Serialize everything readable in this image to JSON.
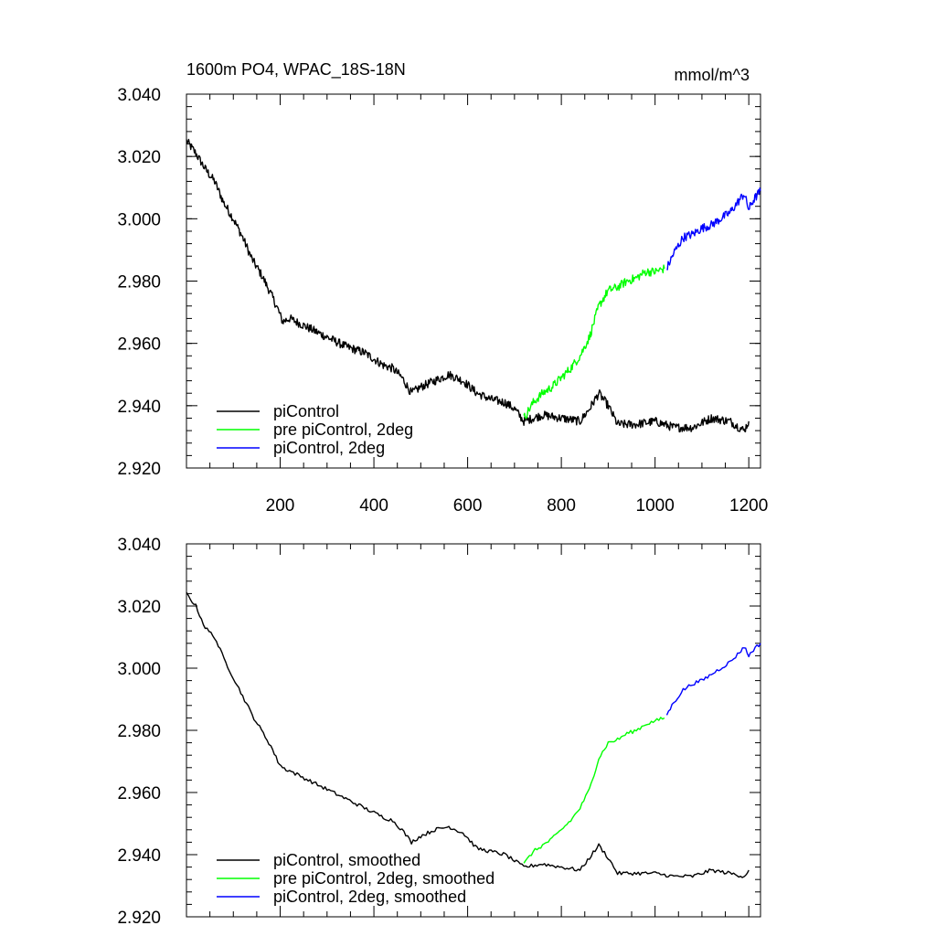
{
  "header": {
    "left_title": "1600m PO4, WPAC_18S-18N",
    "right_title": "mmol/m^3"
  },
  "colors": {
    "piControl": "#000000",
    "pre_piControl_2deg": "#00ff00",
    "piControl_2deg": "#0000ff"
  },
  "chart_data": [
    {
      "type": "line",
      "title": "1600m PO4, WPAC_18S-18N",
      "units": "mmol/m^3",
      "xlim": [
        0,
        1225
      ],
      "ylim": [
        2.92,
        3.04
      ],
      "y_ticks": [
        "3.040",
        "3.020",
        "3.000",
        "2.980",
        "2.960",
        "2.940",
        "2.920"
      ],
      "x_ticks": [
        "200",
        "400",
        "600",
        "800",
        "1000",
        "1200"
      ],
      "legend": [
        "piControl",
        "pre piControl, 2deg",
        "piControl, 2deg"
      ],
      "legend_position": "bottom-left",
      "smoothed": false,
      "series": [
        {
          "name": "piControl",
          "x": [
            0,
            20,
            40,
            60,
            80,
            100,
            120,
            140,
            160,
            180,
            195,
            205,
            220,
            260,
            300,
            340,
            380,
            420,
            440,
            460,
            480,
            500,
            530,
            560,
            590,
            620,
            650,
            680,
            700,
            720,
            760,
            800,
            840,
            860,
            880,
            900,
            920,
            960,
            1000,
            1040,
            1080,
            1120,
            1160,
            1190,
            1200
          ],
          "y": [
            3.025,
            3.021,
            3.016,
            3.012,
            3.005,
            3.0,
            2.994,
            2.987,
            2.982,
            2.976,
            2.971,
            2.967,
            2.968,
            2.965,
            2.962,
            2.959,
            2.957,
            2.953,
            2.952,
            2.949,
            2.944,
            2.946,
            2.948,
            2.95,
            2.948,
            2.944,
            2.942,
            2.941,
            2.939,
            2.935,
            2.937,
            2.936,
            2.935,
            2.939,
            2.944,
            2.94,
            2.934,
            2.934,
            2.935,
            2.933,
            2.933,
            2.936,
            2.935,
            2.932,
            2.935
          ]
        },
        {
          "name": "pre piControl, 2deg",
          "x": [
            720,
            740,
            760,
            780,
            800,
            820,
            840,
            860,
            870,
            880,
            900,
            920,
            940,
            960,
            980,
            1000,
            1020
          ],
          "y": [
            2.936,
            2.941,
            2.944,
            2.946,
            2.949,
            2.952,
            2.956,
            2.962,
            2.967,
            2.972,
            2.977,
            2.978,
            2.98,
            2.981,
            2.983,
            2.983,
            2.984
          ]
        },
        {
          "name": "piControl, 2deg",
          "x": [
            1025,
            1040,
            1060,
            1080,
            1100,
            1120,
            1140,
            1160,
            1180,
            1190,
            1200,
            1210,
            1225
          ],
          "y": [
            2.984,
            2.989,
            2.994,
            2.995,
            2.997,
            2.998,
            3.0,
            3.002,
            3.006,
            3.008,
            3.003,
            3.006,
            3.009
          ]
        }
      ]
    },
    {
      "type": "line",
      "xlim": [
        0,
        1225
      ],
      "ylim": [
        2.92,
        3.04
      ],
      "y_ticks": [
        "3.040",
        "3.020",
        "3.000",
        "2.980",
        "2.960",
        "2.940",
        "2.920"
      ],
      "x_ticks": [],
      "legend": [
        "piControl, smoothed",
        "pre piControl, 2deg, smoothed",
        "piControl, 2deg, smoothed"
      ],
      "legend_position": "bottom-left",
      "smoothed": true,
      "series": [
        {
          "name": "piControl, smoothed",
          "x": [
            0,
            20,
            40,
            60,
            80,
            100,
            120,
            140,
            160,
            180,
            195,
            205,
            220,
            260,
            300,
            340,
            380,
            420,
            440,
            460,
            480,
            500,
            530,
            560,
            590,
            620,
            650,
            680,
            700,
            720,
            760,
            800,
            840,
            860,
            880,
            900,
            920,
            960,
            1000,
            1040,
            1080,
            1120,
            1160,
            1190,
            1200
          ],
          "y": [
            3.024,
            3.02,
            3.013,
            3.01,
            3.003,
            2.997,
            2.991,
            2.985,
            2.98,
            2.975,
            2.97,
            2.968,
            2.967,
            2.964,
            2.961,
            2.958,
            2.955,
            2.952,
            2.951,
            2.948,
            2.944,
            2.946,
            2.948,
            2.949,
            2.947,
            2.942,
            2.941,
            2.94,
            2.938,
            2.936,
            2.937,
            2.936,
            2.935,
            2.939,
            2.943,
            2.939,
            2.934,
            2.934,
            2.934,
            2.933,
            2.933,
            2.935,
            2.934,
            2.933,
            2.935
          ]
        },
        {
          "name": "pre piControl, 2deg, smoothed",
          "x": [
            720,
            740,
            760,
            780,
            800,
            820,
            840,
            860,
            870,
            880,
            900,
            920,
            940,
            960,
            980,
            1000,
            1020
          ],
          "y": [
            2.937,
            2.941,
            2.943,
            2.945,
            2.948,
            2.951,
            2.955,
            2.961,
            2.966,
            2.971,
            2.976,
            2.977,
            2.979,
            2.98,
            2.982,
            2.983,
            2.984
          ]
        },
        {
          "name": "piControl, 2deg, smoothed",
          "x": [
            1025,
            1040,
            1060,
            1080,
            1100,
            1120,
            1140,
            1160,
            1180,
            1190,
            1200,
            1210,
            1225
          ],
          "y": [
            2.985,
            2.989,
            2.993,
            2.995,
            2.996,
            2.998,
            3.0,
            3.002,
            3.005,
            3.007,
            3.004,
            3.006,
            3.008
          ]
        }
      ]
    }
  ]
}
